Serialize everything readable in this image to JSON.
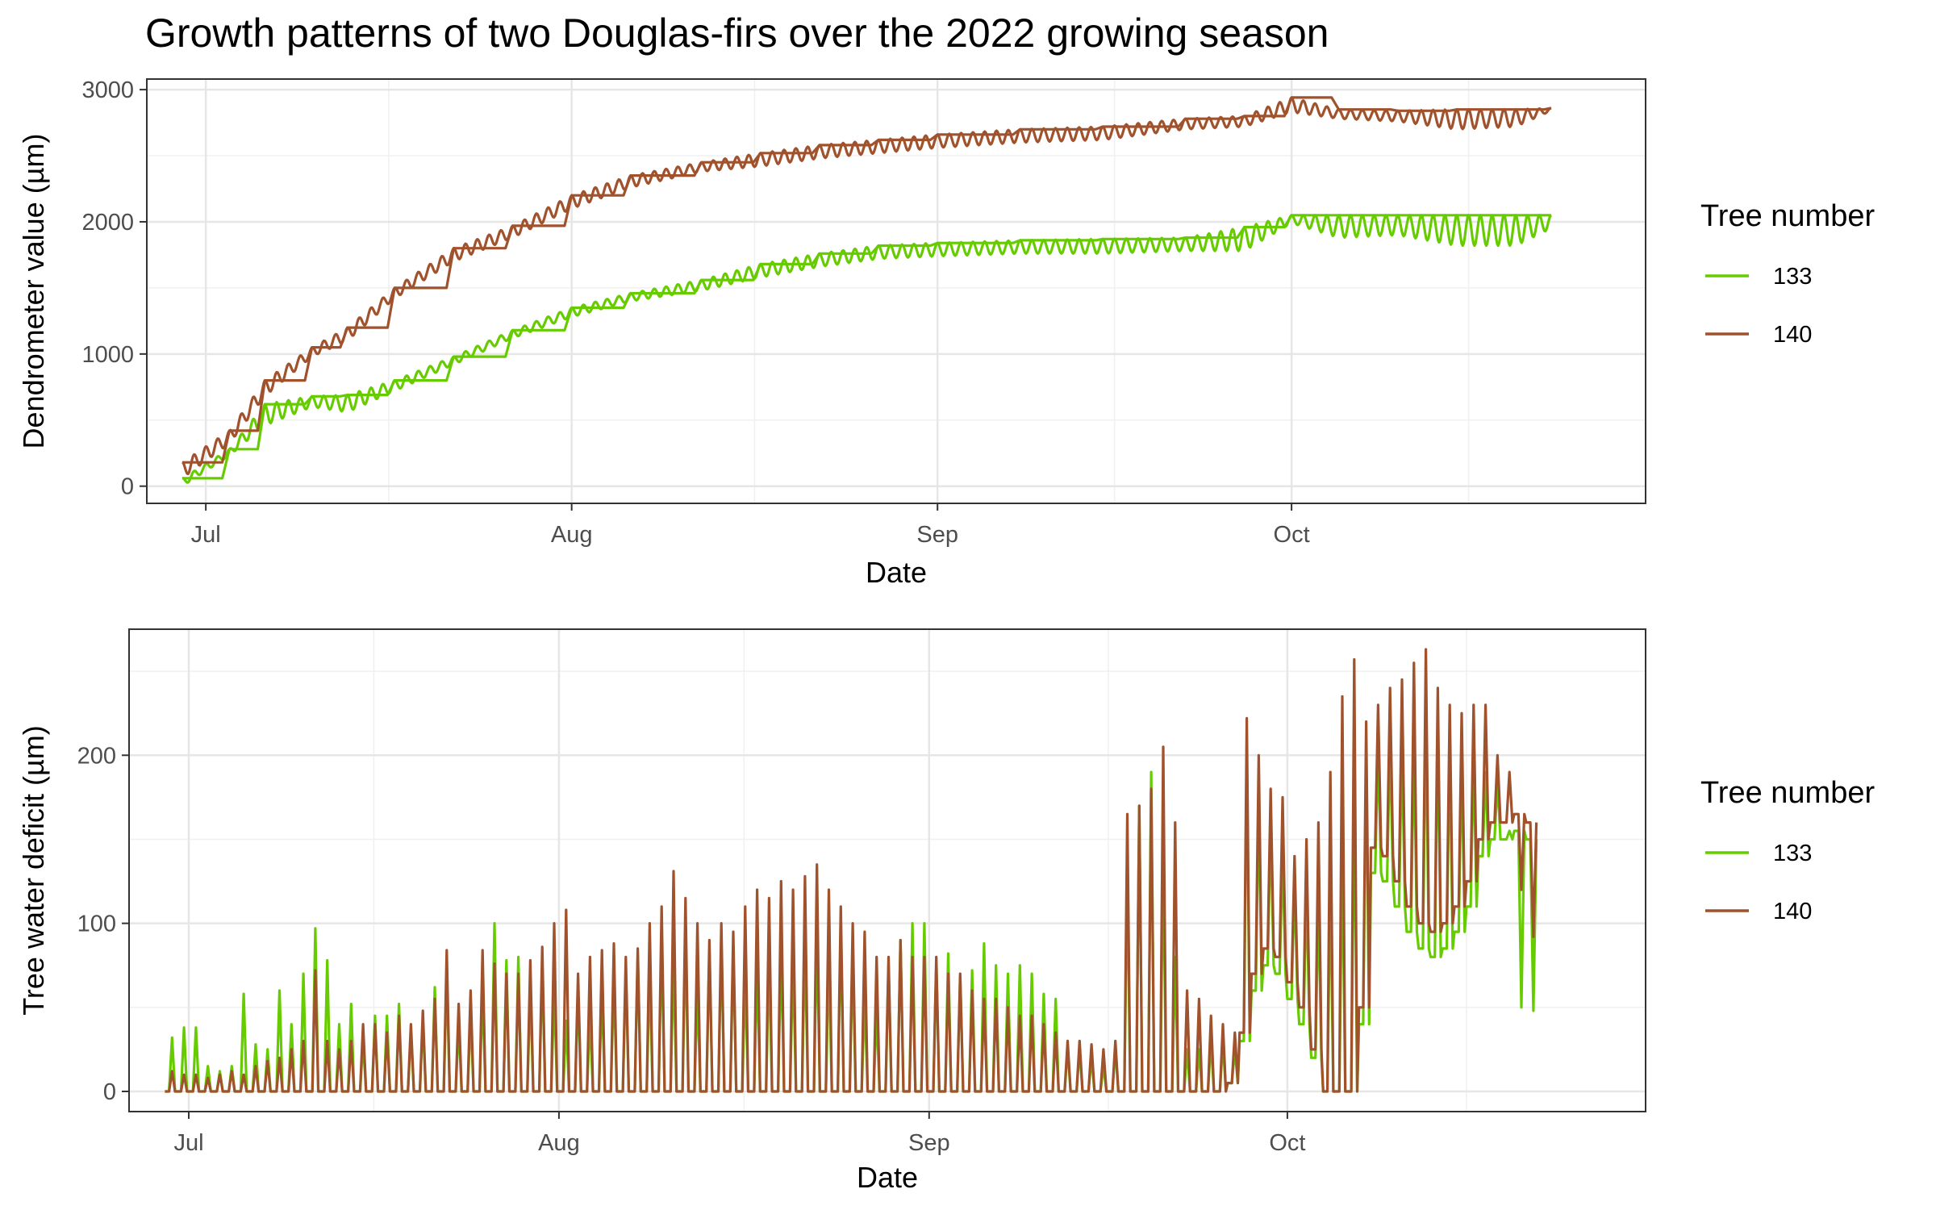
{
  "title": "Growth patterns of two Douglas-firs over the 2022 growing season",
  "colors": {
    "tree_133": "#66cc00",
    "tree_140": "#a0522d"
  },
  "chart_data": [
    {
      "id": "dendrometer",
      "type": "line",
      "xlabel": "Date",
      "ylabel": "Dendrometer value (µm)",
      "x_range": [
        "2022-06-26",
        "2022-10-31"
      ],
      "ylim": [
        -130,
        3080
      ],
      "y_ticks": [
        0,
        1000,
        2000,
        3000
      ],
      "y_tick_labels": [
        "0",
        "1000",
        "2000",
        "3000"
      ],
      "x_ticks": [
        "2022-07-01",
        "2022-08-01",
        "2022-09-01",
        "2022-10-01"
      ],
      "x_tick_labels": [
        "Jul",
        "Aug",
        "Sep",
        "Oct"
      ],
      "grid": true,
      "legend": {
        "title": "Tree number",
        "position": "right",
        "entries": [
          "133",
          "140"
        ]
      },
      "series": [
        {
          "name": "133",
          "color": "#66cc00",
          "kind": "envelope",
          "dates": [
            "2022-06-29",
            "2022-07-03",
            "2022-07-06",
            "2022-07-10",
            "2022-07-13",
            "2022-07-17",
            "2022-07-22",
            "2022-07-27",
            "2022-08-01",
            "2022-08-06",
            "2022-08-12",
            "2022-08-17",
            "2022-08-22",
            "2022-08-27",
            "2022-09-01",
            "2022-09-08",
            "2022-09-15",
            "2022-09-22",
            "2022-09-27",
            "2022-10-01",
            "2022-10-05",
            "2022-10-10",
            "2022-10-15",
            "2022-10-20",
            "2022-10-23"
          ],
          "upper": [
            60,
            280,
            620,
            680,
            690,
            800,
            980,
            1180,
            1350,
            1460,
            1560,
            1680,
            1760,
            1820,
            1840,
            1860,
            1870,
            1880,
            1960,
            2050,
            2050,
            2050,
            2050,
            2050,
            2050
          ],
          "lower": [
            0,
            230,
            460,
            600,
            560,
            720,
            920,
            1120,
            1280,
            1400,
            1480,
            1580,
            1660,
            1720,
            1740,
            1760,
            1760,
            1780,
            1780,
            1990,
            1880,
            1900,
            1820,
            1820,
            1950
          ]
        },
        {
          "name": "140",
          "color": "#a0522d",
          "kind": "envelope",
          "dates": [
            "2022-06-29",
            "2022-07-03",
            "2022-07-06",
            "2022-07-10",
            "2022-07-13",
            "2022-07-17",
            "2022-07-22",
            "2022-07-27",
            "2022-08-01",
            "2022-08-06",
            "2022-08-12",
            "2022-08-17",
            "2022-08-22",
            "2022-08-27",
            "2022-09-01",
            "2022-09-08",
            "2022-09-15",
            "2022-09-22",
            "2022-09-27",
            "2022-10-01",
            "2022-10-05",
            "2022-10-10",
            "2022-10-15",
            "2022-10-20",
            "2022-10-23"
          ],
          "upper": [
            180,
            420,
            800,
            1050,
            1200,
            1500,
            1800,
            1970,
            2200,
            2350,
            2450,
            2520,
            2580,
            2620,
            2660,
            2700,
            2720,
            2780,
            2800,
            2940,
            2850,
            2840,
            2850,
            2850,
            2860
          ],
          "lower": [
            60,
            320,
            680,
            980,
            1100,
            1420,
            1700,
            1880,
            2100,
            2260,
            2380,
            2420,
            2480,
            2520,
            2560,
            2600,
            2620,
            2700,
            2720,
            2830,
            2780,
            2760,
            2700,
            2720,
            2840
          ]
        }
      ]
    },
    {
      "id": "twd",
      "type": "line",
      "xlabel": "Date",
      "ylabel": "Tree water deficit (µm)",
      "x_range": [
        "2022-06-26",
        "2022-10-31"
      ],
      "ylim": [
        -12,
        275
      ],
      "y_ticks": [
        0,
        100,
        200
      ],
      "y_tick_labels": [
        "0",
        "100",
        "200"
      ],
      "x_ticks": [
        "2022-07-01",
        "2022-08-01",
        "2022-09-01",
        "2022-10-01"
      ],
      "x_tick_labels": [
        "Jul",
        "Aug",
        "Sep",
        "Oct"
      ],
      "grid": true,
      "legend": {
        "title": "Tree number",
        "position": "right",
        "entries": [
          "133",
          "140"
        ]
      },
      "series": [
        {
          "name": "133",
          "color": "#66cc00",
          "kind": "daily",
          "start_date": "2022-06-29",
          "base": [
            0,
            0,
            0,
            0,
            0,
            0,
            0,
            0,
            0,
            0,
            0,
            0,
            0,
            0,
            0,
            0,
            0,
            0,
            0,
            0,
            0,
            0,
            0,
            0,
            0,
            0,
            0,
            0,
            0,
            0,
            0,
            0,
            0,
            0,
            0,
            0,
            0,
            0,
            0,
            0,
            0,
            0,
            0,
            0,
            0,
            0,
            0,
            0,
            0,
            0,
            0,
            0,
            0,
            0,
            0,
            0,
            0,
            0,
            0,
            0,
            0,
            0,
            0,
            0,
            0,
            0,
            0,
            0,
            0,
            0,
            0,
            0,
            0,
            0,
            0,
            0,
            0,
            0,
            0,
            0,
            0,
            0,
            0,
            0,
            0,
            0,
            0,
            0,
            0,
            5,
            30,
            60,
            75,
            70,
            55,
            40,
            20,
            0,
            0,
            0,
            40,
            130,
            125,
            110,
            95,
            85,
            80,
            85,
            95,
            110,
            140,
            150,
            150,
            155,
            150,
            160,
            170,
            170,
            160,
            155,
            150,
            150,
            60,
            45,
            45
          ],
          "peak": [
            32,
            38,
            38,
            15,
            12,
            15,
            58,
            28,
            25,
            60,
            40,
            70,
            97,
            78,
            40,
            52,
            30,
            45,
            45,
            52,
            35,
            42,
            62,
            70,
            40,
            45,
            60,
            100,
            78,
            80,
            60,
            75,
            60,
            42,
            60,
            45,
            60,
            68,
            72,
            82,
            72,
            90,
            78,
            92,
            60,
            85,
            90,
            85,
            68,
            75,
            80,
            85,
            78,
            88,
            95,
            80,
            95,
            80,
            55,
            48,
            75,
            90,
            100,
            100,
            75,
            82,
            68,
            72,
            88,
            75,
            70,
            75,
            70,
            58,
            55,
            25,
            25,
            20,
            15,
            25,
            130,
            170,
            190,
            140,
            80,
            25,
            25,
            30,
            30,
            25,
            200,
            175,
            160,
            140,
            125,
            120,
            115,
            125,
            140,
            180,
            200,
            205,
            210,
            205,
            210,
            225,
            220,
            210,
            200,
            200,
            190,
            185,
            155,
            50,
            48
          ]
        },
        {
          "name": "140",
          "color": "#a0522d",
          "kind": "daily",
          "start_date": "2022-06-29",
          "base": [
            0,
            0,
            0,
            0,
            0,
            0,
            0,
            0,
            0,
            0,
            0,
            0,
            0,
            0,
            0,
            0,
            0,
            0,
            0,
            0,
            0,
            0,
            0,
            0,
            0,
            0,
            0,
            0,
            0,
            0,
            0,
            0,
            0,
            0,
            0,
            0,
            0,
            0,
            0,
            0,
            0,
            0,
            0,
            0,
            0,
            0,
            0,
            0,
            0,
            0,
            0,
            0,
            0,
            0,
            0,
            0,
            0,
            0,
            0,
            0,
            0,
            0,
            0,
            0,
            0,
            0,
            0,
            0,
            0,
            0,
            0,
            0,
            0,
            0,
            0,
            0,
            0,
            0,
            0,
            0,
            0,
            0,
            0,
            0,
            0,
            0,
            0,
            0,
            0,
            5,
            35,
            70,
            85,
            80,
            65,
            50,
            25,
            0,
            0,
            0,
            50,
            145,
            140,
            125,
            110,
            100,
            95,
            100,
            110,
            125,
            150,
            160,
            160,
            165,
            160,
            170,
            180,
            180,
            170,
            165,
            160,
            160,
            100,
            92,
            92
          ],
          "peak": [
            12,
            10,
            10,
            8,
            10,
            12,
            10,
            15,
            18,
            20,
            25,
            30,
            72,
            30,
            25,
            30,
            40,
            40,
            35,
            45,
            40,
            48,
            55,
            84,
            52,
            60,
            84,
            76,
            70,
            70,
            78,
            86,
            100,
            108,
            70,
            80,
            84,
            88,
            80,
            85,
            100,
            110,
            131,
            115,
            100,
            90,
            100,
            95,
            110,
            120,
            115,
            125,
            120,
            128,
            135,
            120,
            110,
            100,
            95,
            80,
            80,
            90,
            80,
            80,
            80,
            70,
            70,
            60,
            55,
            55,
            50,
            45,
            45,
            40,
            35,
            30,
            30,
            28,
            25,
            30,
            165,
            170,
            180,
            205,
            160,
            60,
            55,
            45,
            40,
            35,
            222,
            200,
            180,
            175,
            140,
            150,
            160,
            190,
            235,
            257,
            220,
            230,
            240,
            245,
            255,
            263,
            240,
            230,
            225,
            230,
            230,
            200,
            190,
            120,
            92
          ]
        }
      ]
    }
  ]
}
